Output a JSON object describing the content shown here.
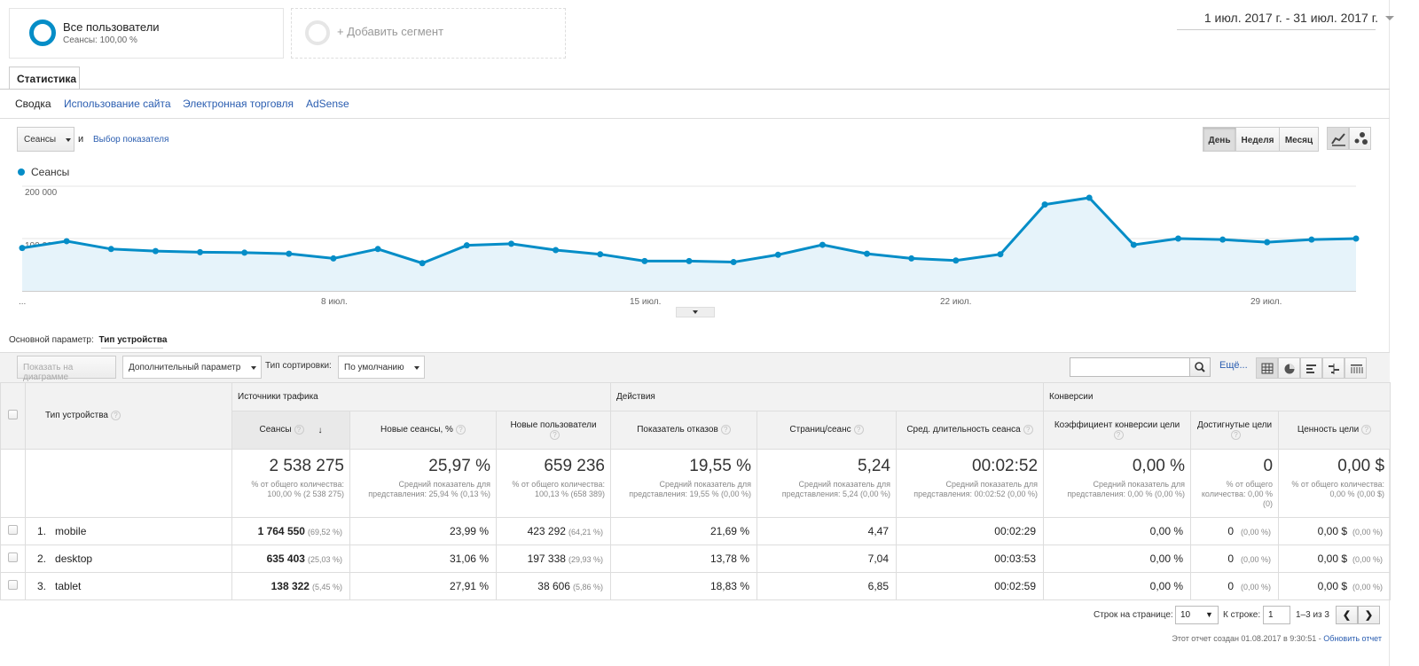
{
  "segments": {
    "all_users_title": "Все пользователи",
    "all_users_sub": "Сеансы: 100,00 %",
    "add_segment": "+ Добавить сегмент"
  },
  "date_range": "1 июл. 2017 г. - 31 июл. 2017 г.",
  "tabs": {
    "active": "Статистика"
  },
  "subnav": [
    "Сводка",
    "Использование сайта",
    "Электронная торговля",
    "AdSense"
  ],
  "chart_controls": {
    "metric_select": "Сеансы",
    "and": "и",
    "choose_metric": "Выбор показателя",
    "periods": [
      "День",
      "Неделя",
      "Месяц"
    ],
    "active_period": "День",
    "chart_type_icons": [
      "line-chart-icon",
      "motion-chart-icon"
    ]
  },
  "chart_data": {
    "type": "area",
    "series": [
      {
        "name": "Сеансы",
        "color": "#058dc7",
        "values": [
          82000,
          95000,
          80000,
          76000,
          74000,
          73000,
          71000,
          62000,
          80000,
          53000,
          87000,
          90000,
          78000,
          70000,
          57000,
          57000,
          55000,
          69000,
          88000,
          71000,
          62000,
          58000,
          70000,
          165000,
          178000,
          88000,
          100000,
          98000,
          93000,
          98000,
          100000
        ]
      }
    ],
    "x": [
      "1 июл.",
      "2 июл.",
      "3 июл.",
      "4 июл.",
      "5 июл.",
      "6 июл.",
      "7 июл.",
      "8 июл.",
      "9 июл.",
      "10 июл.",
      "11 июл.",
      "12 июл.",
      "13 июл.",
      "14 июл.",
      "15 июл.",
      "16 июл.",
      "17 июл.",
      "18 июл.",
      "19 июл.",
      "20 июл.",
      "21 июл.",
      "22 июл.",
      "23 июл.",
      "24 июл.",
      "25 июл.",
      "26 июл.",
      "27 июл.",
      "28 июл.",
      "29 июл.",
      "30 июл.",
      "31 июл."
    ],
    "x_tick_labels": [
      "...",
      "8 июл.",
      "15 июл.",
      "22 июл.",
      "29 июл."
    ],
    "y_tick_labels": [
      "200 000",
      "100 000"
    ],
    "ylim": [
      0,
      200000
    ],
    "grid": true,
    "legend": "top-left"
  },
  "primary_dimension": {
    "label": "Основной параметр:",
    "value": "Тип устройства"
  },
  "table_toolbar": {
    "plot_rows": "Показать на диаграмме",
    "secondary_dim": "Дополнительный параметр",
    "sort_label": "Тип сортировки:",
    "sort_value": "По умолчанию",
    "more": "Ещё...",
    "view_icons": [
      "table-view-icon",
      "pie-view-icon",
      "performance-view-icon",
      "comparison-view-icon",
      "pivot-view-icon"
    ]
  },
  "table": {
    "dim_header": "Тип устройства",
    "groups": [
      "Источники трафика",
      "Действия",
      "Конверсии"
    ],
    "columns": [
      "Сеансы",
      "Новые сеансы, %",
      "Новые пользователи",
      "Показатель отказов",
      "Страниц/сеанс",
      "Сред. длительность сеанса",
      "Коэффициент конверсии цели",
      "Достигнутые цели",
      "Ценность цели"
    ],
    "totals": [
      {
        "value": "2 538 275",
        "sub": "% от общего количества: 100,00 % (2 538 275)"
      },
      {
        "value": "25,97 %",
        "sub": "Средний показатель для представления: 25,94 % (0,13 %)"
      },
      {
        "value": "659 236",
        "sub": "% от общего количества: 100,13 % (658 389)"
      },
      {
        "value": "19,55 %",
        "sub": "Средний показатель для представления: 19,55 % (0,00 %)"
      },
      {
        "value": "5,24",
        "sub": "Средний показатель для представления: 5,24 (0,00 %)"
      },
      {
        "value": "00:02:52",
        "sub": "Средний показатель для представления: 00:02:52 (0,00 %)"
      },
      {
        "value": "0,00 %",
        "sub": "Средний показатель для представления: 0,00 % (0,00 %)"
      },
      {
        "value": "0",
        "sub": "% от общего количества: 0,00 % (0)"
      },
      {
        "value": "0,00 $",
        "sub": "% от общего количества: 0,00 % (0,00 $)"
      }
    ],
    "rows": [
      {
        "idx": "1.",
        "name": "mobile",
        "sessions": "1 764 550",
        "sessions_pct": "(69,52 %)",
        "new_sessions": "23,99 %",
        "new_users": "423 292",
        "new_users_pct": "(64,21 %)",
        "bounce": "21,69 %",
        "pages": "4,47",
        "duration": "00:02:29",
        "conv": "0,00 %",
        "goals": "0",
        "goals_pct": "(0,00 %)",
        "value": "0,00 $",
        "value_pct": "(0,00 %)"
      },
      {
        "idx": "2.",
        "name": "desktop",
        "sessions": "635 403",
        "sessions_pct": "(25,03 %)",
        "new_sessions": "31,06 %",
        "new_users": "197 338",
        "new_users_pct": "(29,93 %)",
        "bounce": "13,78 %",
        "pages": "7,04",
        "duration": "00:03:53",
        "conv": "0,00 %",
        "goals": "0",
        "goals_pct": "(0,00 %)",
        "value": "0,00 $",
        "value_pct": "(0,00 %)"
      },
      {
        "idx": "3.",
        "name": "tablet",
        "sessions": "138 322",
        "sessions_pct": "(5,45 %)",
        "new_sessions": "27,91 %",
        "new_users": "38 606",
        "new_users_pct": "(5,86 %)",
        "bounce": "18,83 %",
        "pages": "6,85",
        "duration": "00:02:59",
        "conv": "0,00 %",
        "goals": "0",
        "goals_pct": "(0,00 %)",
        "value": "0,00 $",
        "value_pct": "(0,00 %)"
      }
    ]
  },
  "pagination": {
    "rows_label": "Строк на странице:",
    "rows_value": "10",
    "goto_label": "К строке:",
    "goto_value": "1",
    "range": "1–3 из 3",
    "prev": "❮",
    "next": "❯"
  },
  "footer": {
    "text": "Этот отчет создан 01.08.2017 в 9:30:51 -",
    "refresh": "Обновить отчет"
  }
}
